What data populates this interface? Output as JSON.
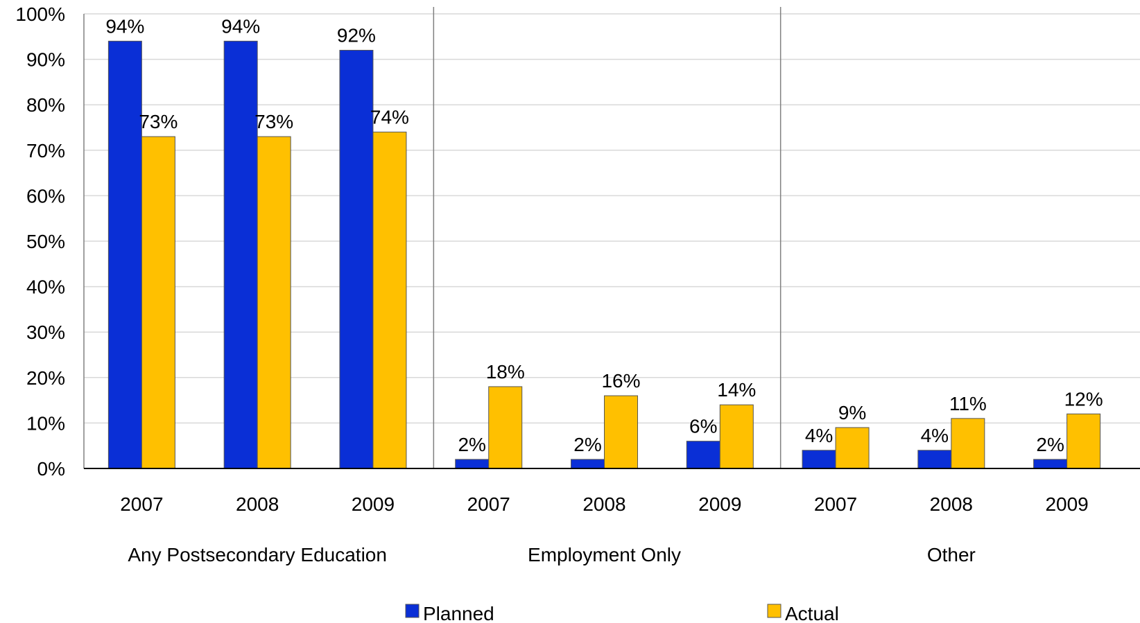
{
  "chart_data": {
    "type": "bar",
    "title": "",
    "xlabel": "",
    "ylabel": "",
    "ylim": [
      0,
      100
    ],
    "yticks": [
      "0%",
      "10%",
      "20%",
      "30%",
      "40%",
      "50%",
      "60%",
      "70%",
      "80%",
      "90%",
      "100%"
    ],
    "grid": true,
    "legend_position": "bottom",
    "groups": [
      {
        "label": "Any Postsecondary Education",
        "categories": [
          "2007",
          "2008",
          "2009"
        ]
      },
      {
        "label": "Employment Only",
        "categories": [
          "2007",
          "2008",
          "2009"
        ]
      },
      {
        "label": "Other",
        "categories": [
          "2007",
          "2008",
          "2009"
        ]
      }
    ],
    "series": [
      {
        "name": "Planned",
        "color": "#0a2fd6",
        "values": [
          94,
          94,
          92,
          2,
          2,
          6,
          4,
          4,
          2
        ],
        "labels": [
          "94%",
          "94%",
          "92%",
          "2%",
          "2%",
          "6%",
          "4%",
          "4%",
          "2%"
        ]
      },
      {
        "name": "Actual",
        "color": "#ffc000",
        "values": [
          73,
          73,
          74,
          18,
          16,
          14,
          9,
          11,
          12
        ],
        "labels": [
          "73%",
          "73%",
          "74%",
          "18%",
          "16%",
          "14%",
          "9%",
          "11%",
          "12%"
        ]
      }
    ]
  }
}
